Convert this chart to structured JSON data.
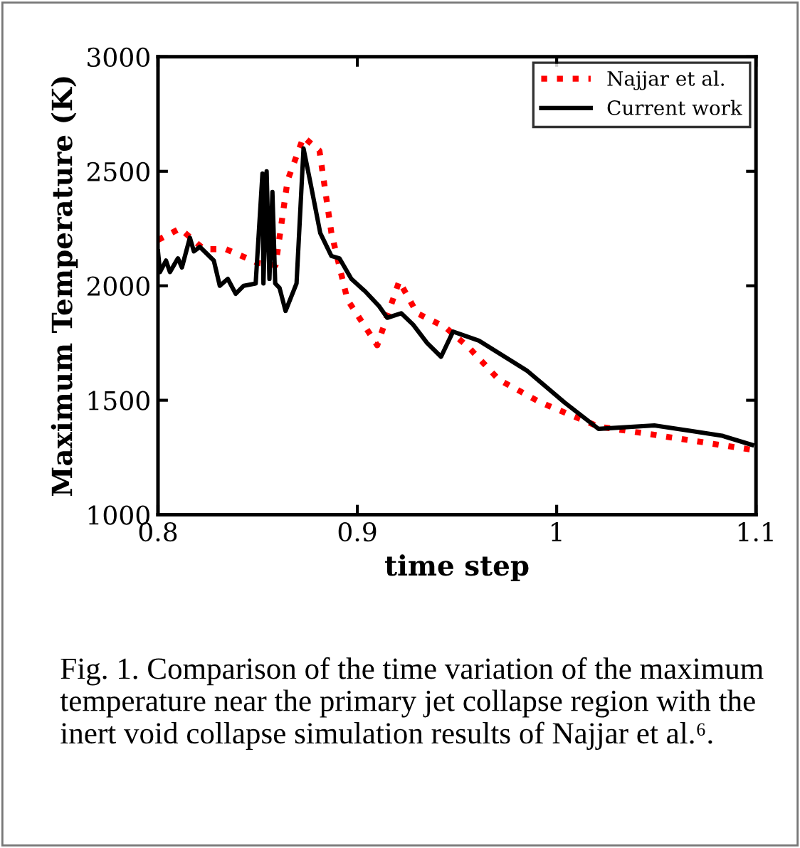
{
  "chart_data": {
    "type": "line",
    "xlabel": "time step",
    "ylabel": "Maximum Temperature (K)",
    "xlim": [
      0.8,
      1.1
    ],
    "xticks": [
      0.8,
      0.9,
      1,
      1.1
    ],
    "ylim": [
      1000,
      3000
    ],
    "yticks": [
      1000,
      1500,
      2000,
      2500,
      3000
    ],
    "grid": false,
    "legend": "top right",
    "series": [
      {
        "name": "Najjar et al.",
        "color": "#ff0000",
        "line_style": "dotted",
        "x": [
          0.8,
          0.811,
          0.823,
          0.834,
          0.85,
          0.859,
          0.865,
          0.873,
          0.881,
          0.887,
          0.895,
          0.91,
          0.921,
          0.93,
          0.944,
          0.956,
          0.971,
          0.992,
          1.021,
          1.052,
          1.097,
          1.1
        ],
        "values": [
          2200,
          2250,
          2160,
          2160,
          2100,
          2090,
          2460,
          2650,
          2590,
          2230,
          1940,
          1740,
          2020,
          1880,
          1820,
          1730,
          1590,
          1490,
          1385,
          1345,
          1285,
          1280
        ]
      },
      {
        "name": "Current work",
        "color": "#000000",
        "line_style": "solid",
        "x": [
          0.8,
          0.801,
          0.804,
          0.806,
          0.81,
          0.812,
          0.816,
          0.818,
          0.821,
          0.828,
          0.831,
          0.835,
          0.839,
          0.843,
          0.849,
          0.8524,
          0.8529,
          0.8545,
          0.8559,
          0.8574,
          0.8588,
          0.861,
          0.864,
          0.8695,
          0.873,
          0.8767,
          0.8814,
          0.887,
          0.891,
          0.897,
          0.904,
          0.911,
          0.915,
          0.922,
          0.928,
          0.935,
          0.942,
          0.948,
          0.961,
          0.985,
          1.004,
          1.021,
          1.049,
          1.068,
          1.083,
          1.098
        ],
        "values": [
          2150,
          2060,
          2110,
          2060,
          2120,
          2080,
          2210,
          2150,
          2170,
          2110,
          2000,
          2030,
          1965,
          2000,
          2010,
          2490,
          2010,
          2500,
          2030,
          2410,
          2010,
          1990,
          1890,
          2010,
          2600,
          2440,
          2230,
          2130,
          2120,
          2030,
          1975,
          1910,
          1860,
          1880,
          1830,
          1750,
          1690,
          1800,
          1760,
          1630,
          1490,
          1375,
          1390,
          1365,
          1345,
          1305
        ]
      }
    ],
    "annotations": [
      "Fig. 1. Comparison of the time variation of the maximum temperature near the primary jet collapse region with the inert void collapse simulation results of Najjar et al.⁶."
    ]
  }
}
